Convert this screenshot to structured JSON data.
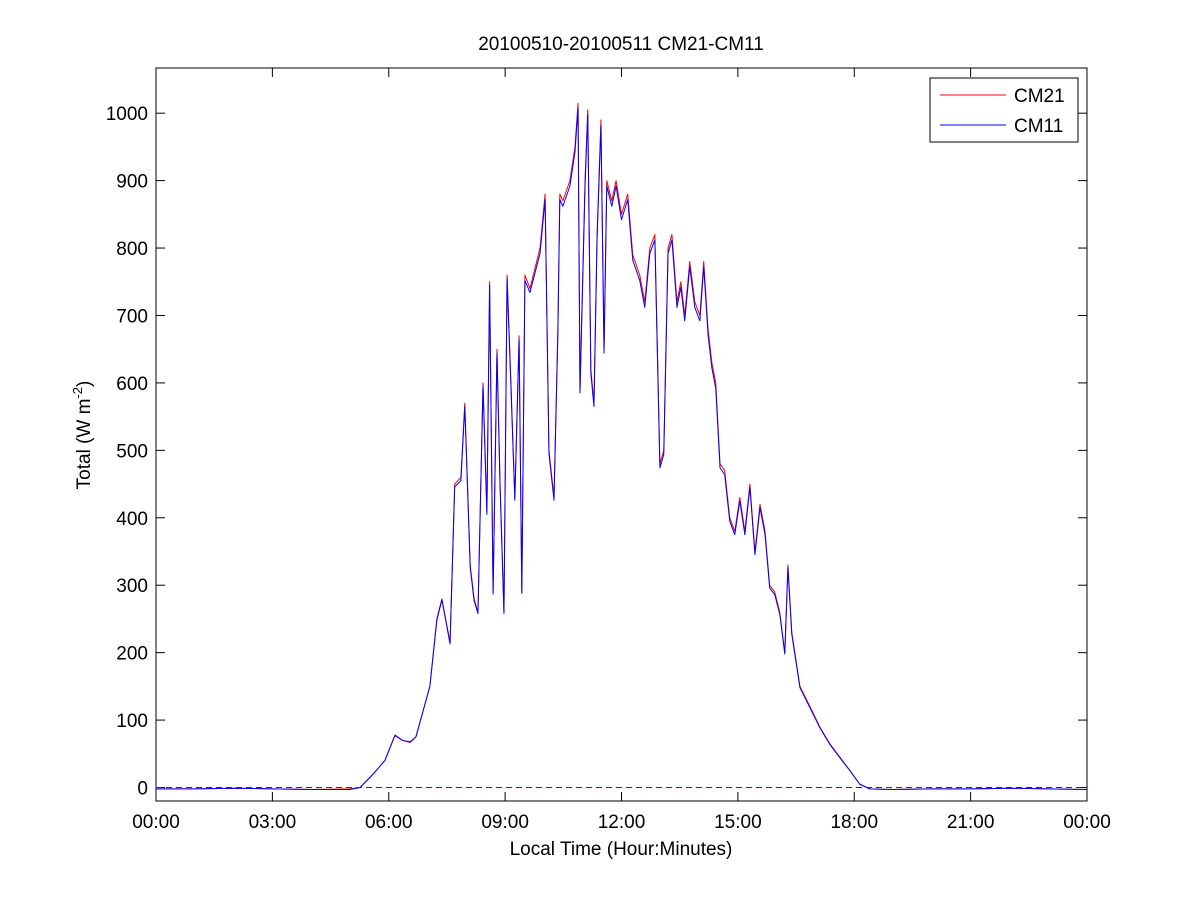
{
  "chart_data": {
    "type": "line",
    "title": "20100510-20100511 CM21-CM11",
    "xlabel": "Local Time (Hour:Minutes)",
    "ylabel": {
      "text": "Total (W m",
      "superscript": "-2",
      "suffix": ")"
    },
    "x": [
      0,
      1,
      2,
      3,
      4,
      5,
      5.26,
      5.6,
      5.9,
      6.16,
      6.35,
      6.55,
      6.7,
      7.06,
      7.24,
      7.37,
      7.5,
      7.58,
      7.7,
      7.86,
      7.96,
      8.1,
      8.2,
      8.3,
      8.43,
      8.53,
      8.6,
      8.69,
      8.79,
      8.87,
      8.97,
      9.05,
      9.15,
      9.25,
      9.36,
      9.43,
      9.51,
      9.64,
      9.9,
      10.03,
      10.13,
      10.26,
      10.36,
      10.41,
      10.49,
      10.67,
      10.8,
      10.88,
      10.93,
      11.06,
      11.13,
      11.21,
      11.29,
      11.37,
      11.47,
      11.55,
      11.62,
      11.75,
      11.86,
      12,
      12.16,
      12.29,
      12.47,
      12.6,
      12.73,
      12.86,
      12.99,
      13.09,
      13.2,
      13.3,
      13.43,
      13.53,
      13.63,
      13.76,
      13.89,
      14.02,
      14.12,
      14.23,
      14.33,
      14.43,
      14.54,
      14.66,
      14.79,
      14.92,
      15.05,
      15.18,
      15.31,
      15.44,
      15.57,
      15.7,
      15.82,
      15.95,
      16.08,
      16.21,
      16.29,
      16.39,
      16.6,
      16.86,
      17.11,
      17.37,
      17.63,
      17.89,
      18.14,
      18.4,
      19,
      20,
      21,
      22,
      23,
      24
    ],
    "series": [
      {
        "name": "CM21",
        "color": "#ff0000",
        "values": [
          -2,
          -2,
          -1,
          -2,
          -3,
          -2,
          0,
          20,
          40,
          78,
          70,
          68,
          75,
          150,
          250,
          280,
          240,
          215,
          450,
          460,
          570,
          330,
          280,
          260,
          600,
          410,
          750,
          290,
          650,
          450,
          260,
          760,
          600,
          430,
          670,
          290,
          760,
          740,
          800,
          880,
          500,
          430,
          680,
          880,
          870,
          900,
          950,
          1015,
          590,
          900,
          1005,
          620,
          570,
          820,
          990,
          650,
          900,
          870,
          900,
          850,
          880,
          790,
          760,
          720,
          800,
          820,
          480,
          500,
          800,
          820,
          720,
          750,
          700,
          780,
          720,
          700,
          780,
          680,
          630,
          600,
          480,
          470,
          400,
          380,
          430,
          380,
          450,
          350,
          420,
          380,
          300,
          290,
          260,
          200,
          330,
          230,
          150,
          120,
          90,
          65,
          45,
          25,
          5,
          -2,
          -3,
          -2,
          -2,
          -1,
          -2,
          -3
        ]
      },
      {
        "name": "CM11",
        "color": "#0000ff",
        "values": [
          -2,
          -2,
          -1,
          -2,
          -3,
          -3,
          0,
          20,
          40,
          77,
          70,
          67,
          75,
          150,
          248,
          278,
          238,
          213,
          446,
          455,
          565,
          326,
          277,
          258,
          595,
          405,
          745,
          287,
          644,
          446,
          258,
          755,
          594,
          426,
          664,
          288,
          752,
          734,
          792,
          872,
          495,
          426,
          674,
          872,
          862,
          892,
          942,
          1008,
          585,
          892,
          998,
          614,
          565,
          812,
          982,
          644,
          892,
          862,
          892,
          842,
          872,
          782,
          752,
          712,
          792,
          812,
          474,
          494,
          792,
          812,
          712,
          742,
          692,
          772,
          712,
          692,
          772,
          672,
          622,
          592,
          474,
          464,
          395,
          375,
          425,
          375,
          445,
          345,
          415,
          375,
          296,
          286,
          257,
          198,
          326,
          227,
          148,
          118,
          89,
          64,
          44,
          25,
          5,
          -2,
          -3,
          -2,
          -2,
          -1,
          -2,
          -3
        ]
      }
    ],
    "hline": {
      "value": 0,
      "color": "#a00000",
      "style": "dashed"
    },
    "xlim": [
      0,
      24
    ],
    "xticks": [
      {
        "value": 0,
        "label": "00:00"
      },
      {
        "value": 3,
        "label": "03:00"
      },
      {
        "value": 6,
        "label": "06:00"
      },
      {
        "value": 9,
        "label": "09:00"
      },
      {
        "value": 12,
        "label": "12:00"
      },
      {
        "value": 15,
        "label": "15:00"
      },
      {
        "value": 18,
        "label": "18:00"
      },
      {
        "value": 21,
        "label": "21:00"
      },
      {
        "value": 24,
        "label": "00:00"
      }
    ],
    "ylim": [
      -20,
      1067
    ],
    "yticks": [
      0,
      100,
      200,
      300,
      400,
      500,
      600,
      700,
      800,
      900,
      1000
    ],
    "grid": false,
    "legend": "upper-right"
  }
}
